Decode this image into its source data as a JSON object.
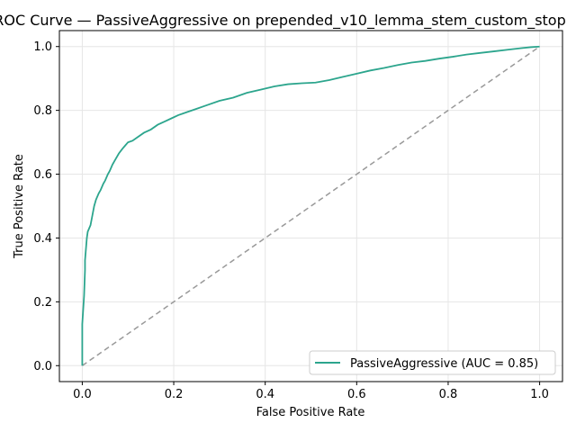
{
  "chart_data": {
    "type": "line",
    "title": "ROC Curve — PassiveAggressive on prepended_v10_lemma_stem_custom_stop",
    "xlabel": "False Positive Rate",
    "ylabel": "True Positive Rate",
    "xlim": [
      -0.05,
      1.05
    ],
    "ylim": [
      -0.05,
      1.05
    ],
    "xticks": [
      0.0,
      0.2,
      0.4,
      0.6,
      0.8,
      1.0
    ],
    "yticks": [
      0.0,
      0.2,
      0.4,
      0.6,
      0.8,
      1.0
    ],
    "xtick_labels": [
      "0.0",
      "0.2",
      "0.4",
      "0.6",
      "0.8",
      "1.0"
    ],
    "ytick_labels": [
      "0.0",
      "0.2",
      "0.4",
      "0.6",
      "0.8",
      "1.0"
    ],
    "grid": true,
    "legend_position": "lower-right",
    "series": [
      {
        "name": "PassiveAggressive (AUC = 0.85)",
        "color": "#2ca58d",
        "x": [
          0.0,
          0.0,
          0.004,
          0.006,
          0.006,
          0.01,
          0.012,
          0.018,
          0.022,
          0.026,
          0.03,
          0.036,
          0.04,
          0.046,
          0.05,
          0.056,
          0.06,
          0.066,
          0.072,
          0.08,
          0.088,
          0.094,
          0.1,
          0.11,
          0.12,
          0.135,
          0.15,
          0.165,
          0.18,
          0.195,
          0.21,
          0.23,
          0.25,
          0.27,
          0.3,
          0.33,
          0.36,
          0.39,
          0.42,
          0.45,
          0.48,
          0.51,
          0.54,
          0.57,
          0.6,
          0.63,
          0.66,
          0.69,
          0.72,
          0.75,
          0.78,
          0.81,
          0.84,
          0.87,
          0.9,
          0.93,
          0.96,
          0.98,
          1.0
        ],
        "y": [
          0.0,
          0.13,
          0.22,
          0.3,
          0.33,
          0.4,
          0.42,
          0.44,
          0.47,
          0.5,
          0.52,
          0.54,
          0.55,
          0.57,
          0.58,
          0.6,
          0.61,
          0.63,
          0.645,
          0.665,
          0.68,
          0.69,
          0.7,
          0.705,
          0.715,
          0.73,
          0.74,
          0.755,
          0.765,
          0.775,
          0.785,
          0.795,
          0.805,
          0.815,
          0.83,
          0.84,
          0.855,
          0.865,
          0.875,
          0.882,
          0.885,
          0.887,
          0.895,
          0.905,
          0.915,
          0.925,
          0.933,
          0.942,
          0.95,
          0.955,
          0.962,
          0.968,
          0.975,
          0.98,
          0.985,
          0.99,
          0.995,
          0.998,
          1.0
        ]
      }
    ],
    "reference_line": {
      "x": [
        0.0,
        1.0
      ],
      "y": [
        0.0,
        1.0
      ],
      "color": "#999999"
    }
  }
}
